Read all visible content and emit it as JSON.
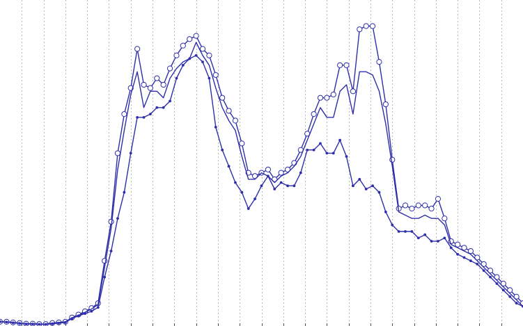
{
  "chart_data": {
    "type": "line",
    "title": "",
    "xlabel": "",
    "ylabel": "",
    "xlim": [
      0,
      80
    ],
    "ylim": [
      0,
      1.0
    ],
    "grid": "vertical-dotted",
    "tick_count": 24,
    "colors": {
      "line": "#2e2eaa",
      "grid": "#b8b8b8"
    },
    "x": [
      0,
      1,
      2,
      3,
      4,
      5,
      6,
      7,
      8,
      9,
      10,
      11,
      12,
      13,
      14,
      15,
      16,
      17,
      18,
      19,
      20,
      21,
      22,
      23,
      24,
      25,
      26,
      27,
      28,
      29,
      30,
      31,
      32,
      33,
      34,
      35,
      36,
      37,
      38,
      39,
      40,
      41,
      42,
      43,
      44,
      45,
      46,
      47,
      48,
      49,
      50,
      51,
      52,
      53,
      54,
      55,
      56,
      57,
      58,
      59,
      60,
      61,
      62,
      63,
      64,
      65,
      66,
      67,
      68,
      69,
      70,
      71,
      72,
      73,
      74,
      75,
      76,
      77,
      78,
      79,
      80
    ],
    "series": [
      {
        "marker": "circle-open",
        "values": [
          0.013,
          0.013,
          0.011,
          0.009,
          0.007,
          0.007,
          0.006,
          0.006,
          0.009,
          0.011,
          0.013,
          0.026,
          0.035,
          0.045,
          0.055,
          0.07,
          0.2,
          0.32,
          0.53,
          0.65,
          0.73,
          0.85,
          0.74,
          0.73,
          0.76,
          0.74,
          0.79,
          0.83,
          0.86,
          0.88,
          0.89,
          0.85,
          0.83,
          0.77,
          0.7,
          0.66,
          0.63,
          0.56,
          0.47,
          0.46,
          0.47,
          0.48,
          0.45,
          0.47,
          0.48,
          0.5,
          0.54,
          0.59,
          0.65,
          0.7,
          0.7,
          0.71,
          0.8,
          0.8,
          0.72,
          0.91,
          0.92,
          0.92,
          0.81,
          0.68,
          0.51,
          0.36,
          0.37,
          0.36,
          0.37,
          0.37,
          0.36,
          0.39,
          0.33,
          0.26,
          0.25,
          0.24,
          0.23,
          0.21,
          0.19,
          0.17,
          0.15,
          0.13,
          0.11,
          0.09,
          0.07
        ]
      },
      {
        "marker": "none",
        "values": [
          0.013,
          0.013,
          0.011,
          0.009,
          0.007,
          0.007,
          0.006,
          0.006,
          0.009,
          0.011,
          0.013,
          0.025,
          0.033,
          0.042,
          0.052,
          0.066,
          0.18,
          0.3,
          0.48,
          0.6,
          0.71,
          0.78,
          0.67,
          0.72,
          0.72,
          0.7,
          0.76,
          0.79,
          0.81,
          0.82,
          0.87,
          0.83,
          0.8,
          0.73,
          0.67,
          0.63,
          0.6,
          0.52,
          0.45,
          0.45,
          0.47,
          0.46,
          0.44,
          0.46,
          0.47,
          0.49,
          0.52,
          0.57,
          0.62,
          0.67,
          0.64,
          0.64,
          0.72,
          0.74,
          0.65,
          0.78,
          0.78,
          0.77,
          0.72,
          0.62,
          0.49,
          0.35,
          0.34,
          0.33,
          0.33,
          0.34,
          0.33,
          0.33,
          0.31,
          0.25,
          0.24,
          0.23,
          0.22,
          0.2,
          0.18,
          0.16,
          0.14,
          0.12,
          0.1,
          0.08,
          0.06
        ]
      },
      {
        "marker": "dot",
        "values": [
          0.013,
          0.012,
          0.01,
          0.008,
          0.006,
          0.006,
          0.005,
          0.005,
          0.007,
          0.009,
          0.011,
          0.023,
          0.031,
          0.038,
          0.045,
          0.057,
          0.15,
          0.23,
          0.33,
          0.41,
          0.53,
          0.64,
          0.64,
          0.65,
          0.67,
          0.67,
          0.69,
          0.76,
          0.8,
          0.82,
          0.83,
          0.81,
          0.76,
          0.61,
          0.54,
          0.49,
          0.44,
          0.41,
          0.36,
          0.39,
          0.43,
          0.46,
          0.42,
          0.44,
          0.43,
          0.43,
          0.47,
          0.54,
          0.54,
          0.56,
          0.53,
          0.53,
          0.57,
          0.52,
          0.43,
          0.45,
          0.42,
          0.43,
          0.41,
          0.35,
          0.31,
          0.29,
          0.29,
          0.29,
          0.27,
          0.28,
          0.26,
          0.26,
          0.27,
          0.24,
          0.22,
          0.21,
          0.2,
          0.19,
          0.17,
          0.15,
          0.13,
          0.11,
          0.09,
          0.07,
          0.06
        ]
      }
    ]
  }
}
